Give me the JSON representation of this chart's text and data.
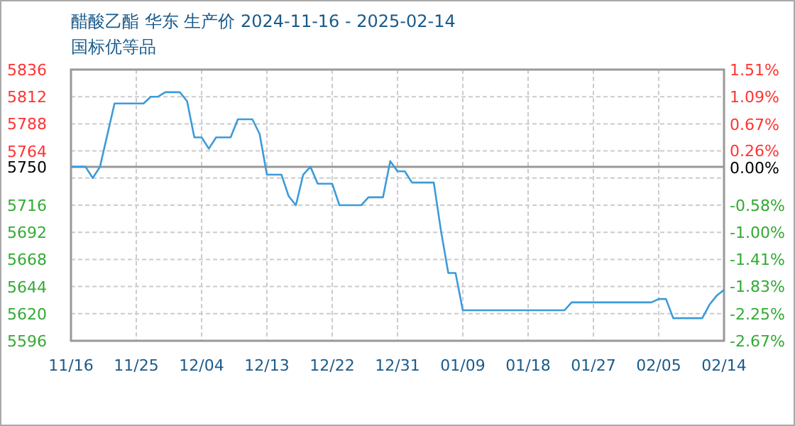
{
  "chart_data": {
    "type": "line",
    "title": "醋酸乙酯 华东 生产价 2024-11-16 - 2025-02-14",
    "subtitle": "国标优等品",
    "x": [
      "2024-11-16",
      "2024-11-18",
      "2024-11-19",
      "2024-11-20",
      "2024-11-22",
      "2024-11-26",
      "2024-11-27",
      "2024-11-28",
      "2024-11-29",
      "2024-12-01",
      "2024-12-02",
      "2024-12-03",
      "2024-12-04",
      "2024-12-05",
      "2024-12-06",
      "2024-12-08",
      "2024-12-09",
      "2024-12-11",
      "2024-12-12",
      "2024-12-13",
      "2024-12-15",
      "2024-12-16",
      "2024-12-17",
      "2024-12-18",
      "2024-12-19",
      "2024-12-20",
      "2024-12-22",
      "2024-12-23",
      "2024-12-26",
      "2024-12-27",
      "2024-12-29",
      "2024-12-30",
      "2024-12-31",
      "2025-01-01",
      "2025-01-02",
      "2025-01-05",
      "2025-01-06",
      "2025-01-07",
      "2025-01-08",
      "2025-01-09",
      "2025-01-23",
      "2025-01-24",
      "2025-02-04",
      "2025-02-05",
      "2025-02-06",
      "2025-02-07",
      "2025-02-11",
      "2025-02-12",
      "2025-02-13",
      "2025-02-14"
    ],
    "series": [
      {
        "color": "#3d9bd9",
        "values": [
          5750,
          5750,
          5740,
          5750,
          5806,
          5806,
          5812,
          5812,
          5816,
          5816,
          5808,
          5776,
          5776,
          5766,
          5776,
          5776,
          5792,
          5792,
          5779,
          5743,
          5743,
          5724,
          5716,
          5743,
          5750,
          5735,
          5735,
          5716,
          5716,
          5723,
          5723,
          5755,
          5746,
          5746,
          5736,
          5736,
          5693,
          5656,
          5656,
          5623,
          5623,
          5630,
          5630,
          5633,
          5633,
          5616,
          5616,
          5628,
          5636,
          5641
        ]
      }
    ],
    "xlim": [
      "2024-11-16",
      "2025-02-14"
    ],
    "xticks": [
      {
        "value": "2024-11-16",
        "label": "11/16"
      },
      {
        "value": "2024-11-25",
        "label": "11/25"
      },
      {
        "value": "2024-12-04",
        "label": "12/04"
      },
      {
        "value": "2024-12-13",
        "label": "12/13"
      },
      {
        "value": "2024-12-22",
        "label": "12/22"
      },
      {
        "value": "2024-12-31",
        "label": "12/31"
      },
      {
        "value": "2025-01-09",
        "label": "01/09"
      },
      {
        "value": "2025-01-18",
        "label": "01/18"
      },
      {
        "value": "2025-01-27",
        "label": "01/27"
      },
      {
        "value": "2025-02-05",
        "label": "02/05"
      },
      {
        "value": "2025-02-14",
        "label": "02/14"
      }
    ],
    "ylim": [
      5596,
      5836
    ],
    "yticks": [
      5596,
      5620,
      5644,
      5668,
      5692,
      5716,
      {
        "value": 5740,
        "label": null
      },
      5750,
      5764,
      5788,
      5812,
      5836
    ],
    "y2lim": [
      -2.67,
      1.51
    ],
    "y2ticks": [
      {
        "value": -2.67,
        "label": "-2.67%"
      },
      {
        "value": -2.25,
        "label": "-2.25%"
      },
      {
        "value": -1.83,
        "label": "-1.83%"
      },
      {
        "value": -1.41,
        "label": "-1.41%"
      },
      {
        "value": -1.0,
        "label": "-1.00%"
      },
      {
        "value": -0.58,
        "label": "-0.58%"
      },
      {
        "value": 0.0,
        "label": "0.00%"
      },
      {
        "value": 0.26,
        "label": "0.26%"
      },
      {
        "value": 0.67,
        "label": "0.67%"
      },
      {
        "value": 1.09,
        "label": "1.09%"
      },
      {
        "value": 1.51,
        "label": "1.51%"
      }
    ],
    "ref_lines": [
      {
        "axis": "y",
        "value": 5750,
        "color": "#999999",
        "line_style": "solid"
      }
    ],
    "grid": true,
    "marker": "none",
    "line_style": "solid"
  }
}
